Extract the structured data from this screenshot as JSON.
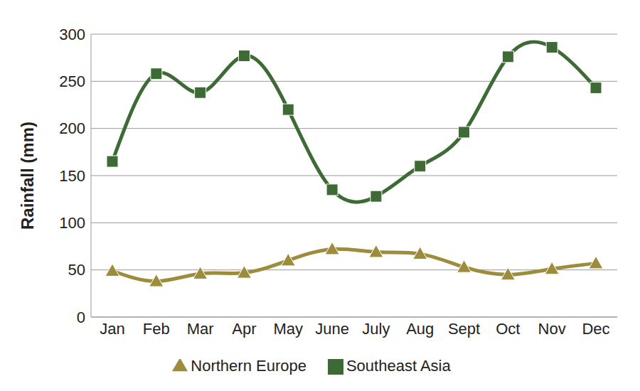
{
  "chart_data": {
    "type": "line",
    "y_label": "Rainfall (mm)",
    "categories": [
      "Jan",
      "Feb",
      "Mar",
      "Apr",
      "May",
      "June",
      "July",
      "Aug",
      "Sept",
      "Oct",
      "Nov",
      "Dec"
    ],
    "series": [
      {
        "name": "Southeast Asia",
        "color": "#3e6b35",
        "marker": "square",
        "values": [
          165,
          258,
          238,
          277,
          220,
          135,
          128,
          160,
          196,
          276,
          286,
          243
        ]
      },
      {
        "name": "Northern Europe",
        "color": "#9c8c3c",
        "marker": "triangle",
        "values": [
          49,
          38,
          46,
          47,
          60,
          72,
          69,
          67,
          53,
          45,
          51,
          57
        ]
      }
    ],
    "ylim": [
      0,
      300
    ],
    "yticks": [
      0,
      50,
      100,
      150,
      200,
      250,
      300
    ],
    "grid": true,
    "legend": "bottom"
  }
}
